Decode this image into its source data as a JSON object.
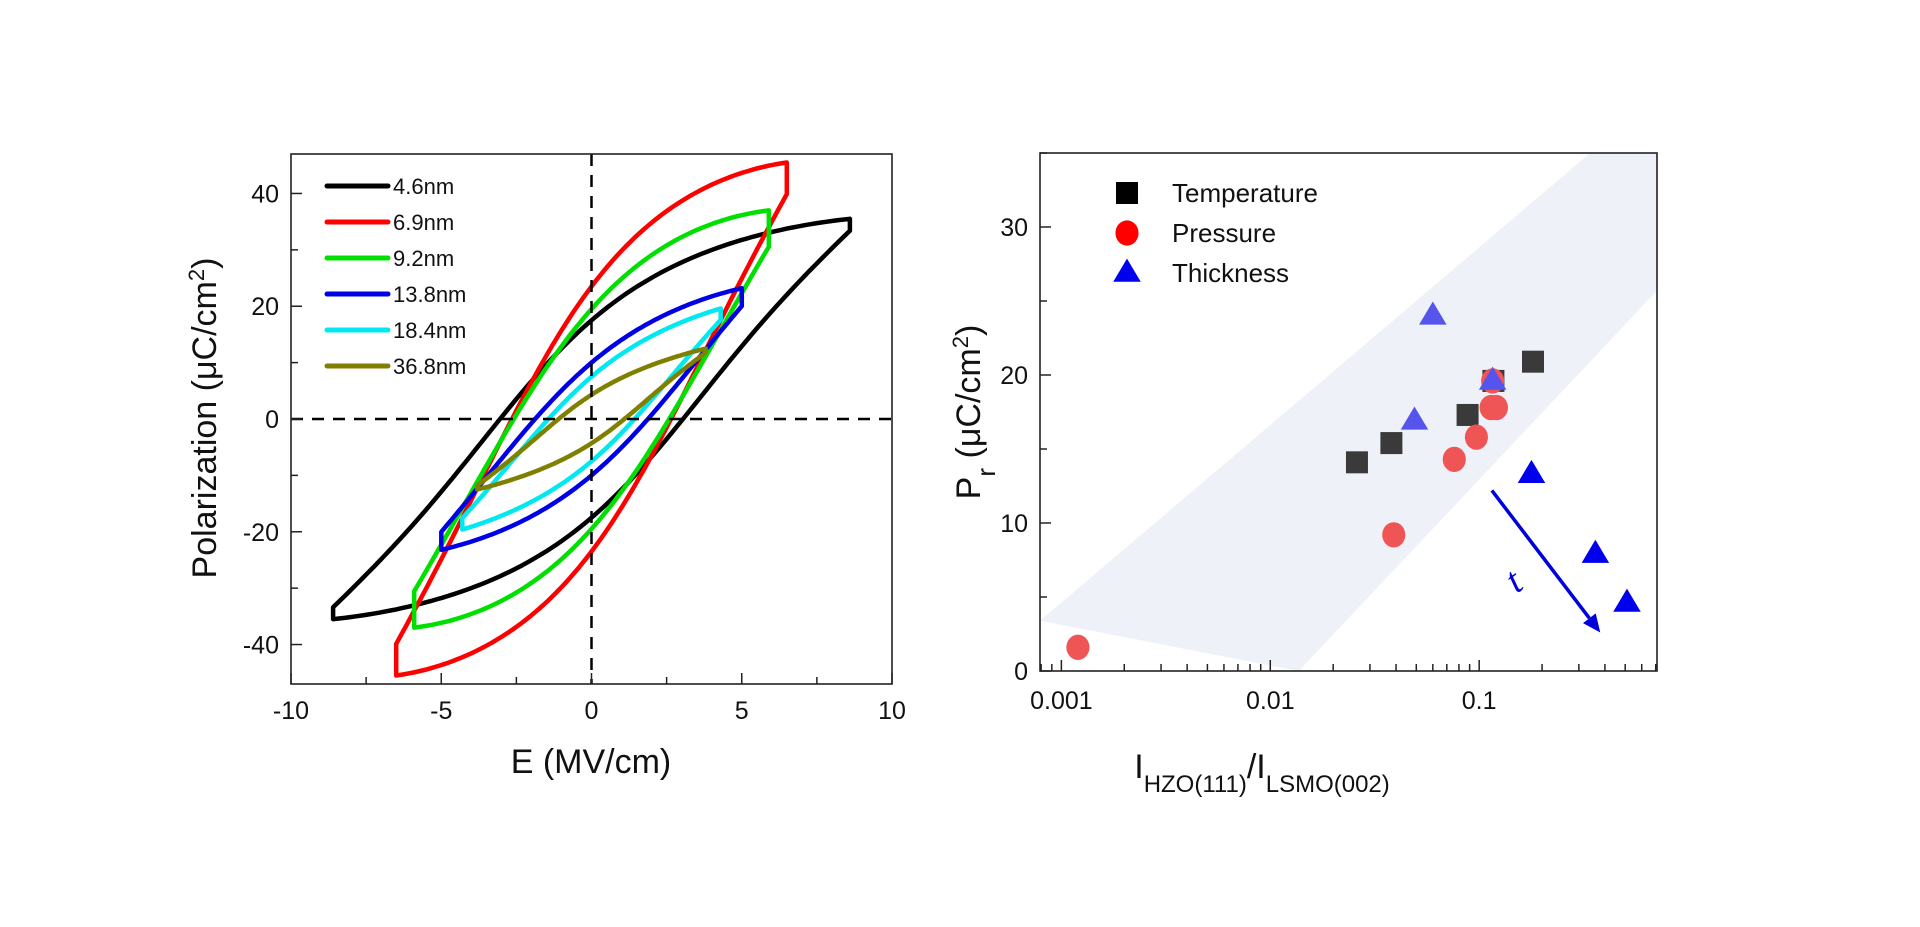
{
  "chart_data": [
    {
      "type": "line",
      "title": "",
      "xlabel": "E (MV/cm)",
      "ylabel_main": "Polarization (μC/cm",
      "ylabel_sup": "2",
      "ylabel_end": ")",
      "xlim": [
        -10,
        10
      ],
      "ylim": [
        -47,
        47
      ],
      "xticks": [
        -10,
        -5,
        0,
        5,
        10
      ],
      "xtick_labels": [
        "-10",
        "-5",
        "0",
        "5",
        "10"
      ],
      "yticks": [
        -40,
        -20,
        0,
        20,
        40
      ],
      "ytick_labels": [
        "-40",
        "-20",
        "0",
        "20",
        "40"
      ],
      "x_minor_step": 2.5,
      "y_minor_step": 10,
      "reference_lines": {
        "horizontal_at": 0,
        "vertical_at": 0,
        "style": "dashed"
      },
      "grid": false,
      "legend_position": "top-left",
      "series": [
        {
          "name": "4.6nm",
          "color": "#000000",
          "Emax": 8.6,
          "Pmax": 35.5,
          "Pr": 17.5,
          "Ec": 3.1
        },
        {
          "name": "6.9nm",
          "color": "#ff0000",
          "Emax": 6.5,
          "Pmax": 45.5,
          "Pr": 23.5,
          "Ec": 2.9
        },
        {
          "name": "9.2nm",
          "color": "#00e000",
          "Emax": 5.9,
          "Pmax": 37.0,
          "Pr": 19.5,
          "Ec": 3.0
        },
        {
          "name": "13.8nm",
          "color": "#0000e6",
          "Emax": 5.0,
          "Pmax": 23.2,
          "Pr": 10.0,
          "Ec": 2.5
        },
        {
          "name": "18.4nm",
          "color": "#00e8f0",
          "Emax": 4.3,
          "Pmax": 19.6,
          "Pr": 7.5,
          "Ec": 2.0
        },
        {
          "name": "36.8nm",
          "color": "#808000",
          "Emax": 3.8,
          "Pmax": 12.5,
          "Pr": 4.3,
          "Ec": 1.5
        }
      ]
    },
    {
      "type": "scatter",
      "title": "",
      "xlabel_parts": [
        {
          "text": "I",
          "sub": false
        },
        {
          "text": "HZO(111)",
          "sub": true
        },
        {
          "text": "/I",
          "sub": false
        },
        {
          "text": "LSMO(002)",
          "sub": true
        }
      ],
      "ylabel_parts": [
        {
          "text": "P",
          "kind": "normal"
        },
        {
          "text": "r",
          "kind": "sub"
        },
        {
          "text": " (μC/cm",
          "kind": "normal"
        },
        {
          "text": "2",
          "kind": "sup"
        },
        {
          "text": ")",
          "kind": "normal"
        }
      ],
      "xscale": "log",
      "xlim": [
        0.00079,
        0.71
      ],
      "ylim": [
        0,
        35
      ],
      "xticks": [
        0.001,
        0.01,
        0.1
      ],
      "xtick_labels": [
        "0.001",
        "0.01",
        "0.1"
      ],
      "yticks": [
        0,
        10,
        20,
        30
      ],
      "ytick_labels": [
        "0",
        "10",
        "20",
        "30"
      ],
      "y_minor_step": 5,
      "grid": false,
      "legend_position": "top-left",
      "band": {
        "color": "#eef1f7",
        "polygon": [
          [
            0.00079,
            3.4
          ],
          [
            0.34,
            35
          ],
          [
            0.71,
            35
          ],
          [
            0.71,
            25.7
          ],
          [
            0.0137,
            0
          ]
        ]
      },
      "series": [
        {
          "name": "Temperature",
          "marker": "square",
          "color": "#000000",
          "point_color": "#3a3a3a",
          "points": [
            [
              0.026,
              14.1
            ],
            [
              0.038,
              15.4
            ],
            [
              0.088,
              17.3
            ],
            [
              0.117,
              19.6
            ],
            [
              0.181,
              20.9
            ]
          ]
        },
        {
          "name": "Pressure",
          "marker": "circle",
          "color": "#ff0000",
          "point_color": "#ef5555",
          "points": [
            [
              0.0012,
              1.6
            ],
            [
              0.039,
              9.2
            ],
            [
              0.076,
              14.3
            ],
            [
              0.097,
              15.8
            ],
            [
              0.114,
              17.8
            ],
            [
              0.121,
              17.8
            ],
            [
              0.116,
              19.6
            ]
          ]
        },
        {
          "name": "Thickness",
          "marker": "triangle",
          "color": "#0000ee",
          "points": [
            {
              "x": 0.06,
              "y": 24.0,
              "color": "#5555ee"
            },
            {
              "x": 0.049,
              "y": 16.9,
              "color": "#5555ee"
            },
            {
              "x": 0.116,
              "y": 19.6,
              "color": "#5555ee"
            },
            {
              "x": 0.178,
              "y": 13.3,
              "color": "#0000ee"
            },
            {
              "x": 0.36,
              "y": 7.9,
              "color": "#0000ee"
            },
            {
              "x": 0.51,
              "y": 4.6,
              "color": "#0000ee"
            }
          ]
        }
      ],
      "annotation": {
        "text": "t",
        "meaning": "increasing thickness",
        "color": "#0000dd",
        "arrow_from": [
          0.115,
          12.2
        ],
        "arrow_to": [
          0.38,
          2.6
        ]
      }
    }
  ]
}
